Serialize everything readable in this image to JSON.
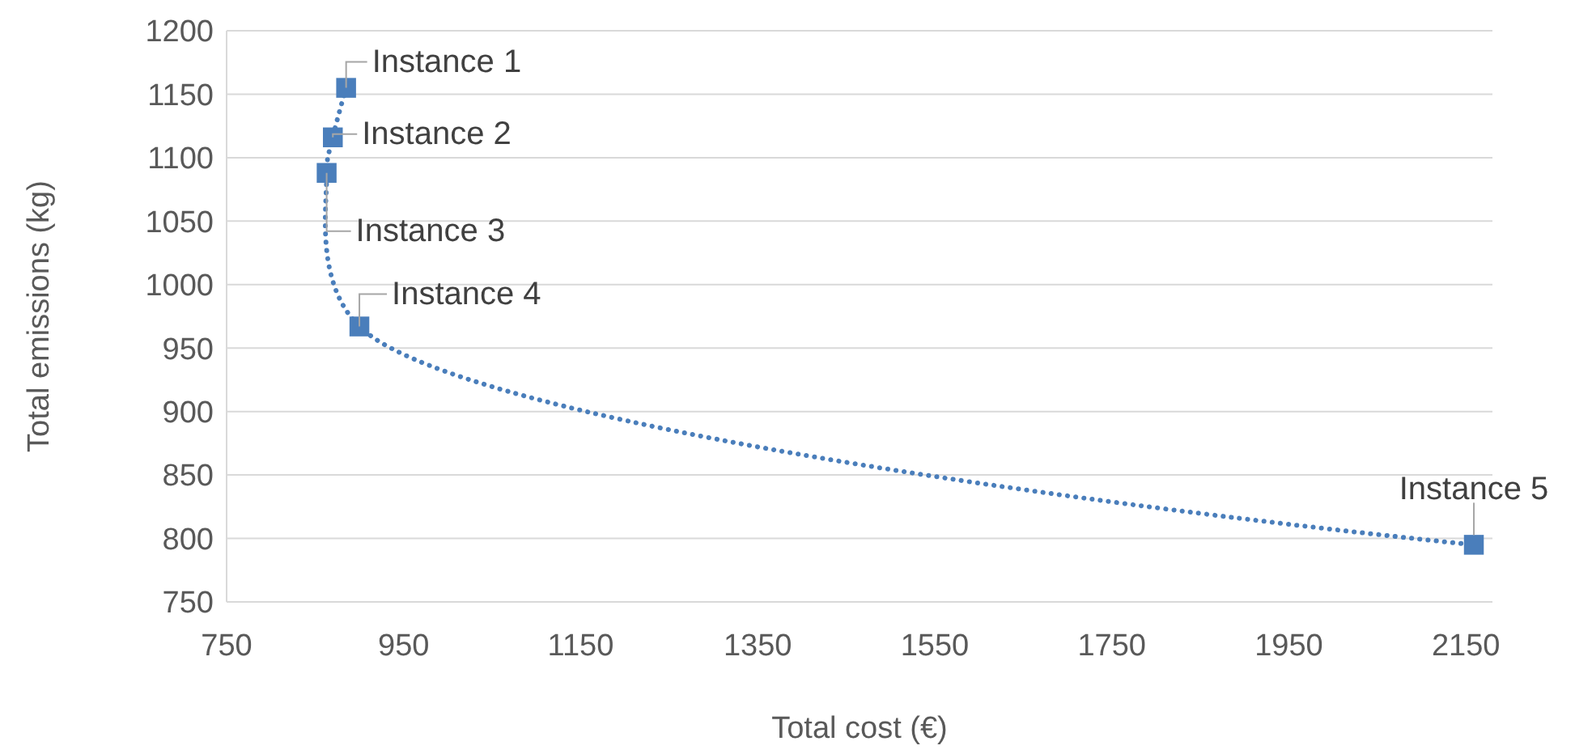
{
  "chart_data": {
    "type": "scatter",
    "xlabel": "Total cost (€)",
    "ylabel": "Total emissions (kg)",
    "x": [
      885,
      870,
      863,
      900,
      2159
    ],
    "series": [
      {
        "color": "#4a7ebb",
        "values": [
          1155,
          1116,
          1088,
          967,
          795
        ]
      }
    ],
    "marker": "square",
    "line_style": "dotted",
    "grid": "y",
    "xlim": [
      750,
      2180
    ],
    "xticks": [
      750,
      950,
      1150,
      1350,
      1550,
      1750,
      1950,
      2150
    ],
    "ylim": [
      750,
      1200
    ],
    "yticks": [
      750,
      800,
      850,
      900,
      950,
      1000,
      1050,
      1100,
      1150,
      1200
    ],
    "annotations": [
      {
        "text": "Instance 1",
        "x": 885,
        "y": 1155
      },
      {
        "text": "Instance 2",
        "x": 870,
        "y": 1116
      },
      {
        "text": "Instance 3",
        "x": 863,
        "y": 1088
      },
      {
        "text": "Instance 4",
        "x": 900,
        "y": 967
      },
      {
        "text": "Instance 5",
        "x": 2159,
        "y": 795
      }
    ]
  }
}
